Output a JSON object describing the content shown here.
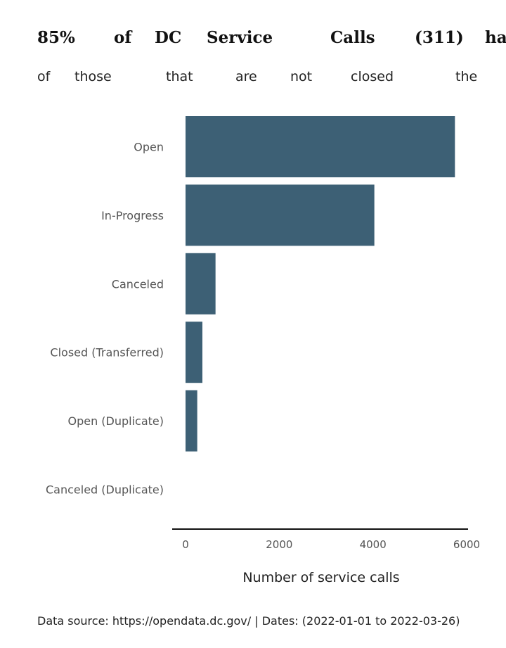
{
  "chart_data": {
    "type": "bar",
    "orientation": "horizontal",
    "title_words": [
      "85%",
      "of",
      "DC",
      "Service",
      "Calls",
      "(311)",
      "ha"
    ],
    "subtitle_words": [
      "of",
      "those",
      "that",
      "are",
      "not",
      "closed",
      "the"
    ],
    "categories": [
      "Open",
      "In-Progress",
      "Canceled",
      "Closed (Transferred)",
      "Open (Duplicate)",
      "Canceled (Duplicate)"
    ],
    "values": [
      5750,
      4030,
      640,
      360,
      250,
      0
    ],
    "xlabel": "Number of service calls",
    "ylabel": "",
    "xlim": [
      0,
      6000
    ],
    "xticks": [
      0,
      2000,
      4000,
      6000
    ],
    "grid": false,
    "bar_color": "#3d6075",
    "caption": "Data source: https://opendata.dc.gov/ | Dates: (2022-01-01 to 2022-03-26)"
  }
}
